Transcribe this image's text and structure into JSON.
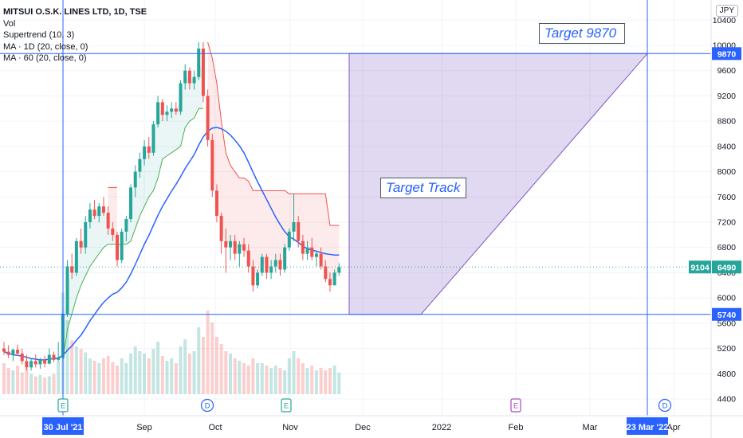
{
  "chart_data": {
    "type": "candlestick",
    "title": "MITSUI O.S.K. LINES LTD, 1D, TSE",
    "indicators": [
      "Vol",
      "Supertrend (10, 3)",
      "MA · 1D (20, close, 0)",
      "MA · 60 (20, close, 0)"
    ],
    "currency": "JPY",
    "y_ticks": [
      "10400",
      "10000",
      "9600",
      "9200",
      "8800",
      "8400",
      "8000",
      "7600",
      "7200",
      "6800",
      "6400",
      "6000",
      "5600",
      "5200",
      "4800",
      "4400"
    ],
    "ylim": [
      4200,
      10500
    ],
    "x_ticks": [
      "Sep",
      "Oct",
      "Nov",
      "Dec",
      "2022",
      "Feb",
      "Mar",
      "Apr"
    ],
    "x_highlight_start": "30 Jul '21",
    "x_highlight_end": "23 Mar '22",
    "target_level": 9870,
    "target_label": "9870",
    "stop_level": 5740,
    "stop_label": "5740",
    "last_price": "6490",
    "last_price_prefix": "9104",
    "annotations": {
      "target": "Target 9870",
      "track": "Target Track"
    },
    "event_markers": [
      {
        "date": "30 Jul '21",
        "letter": "E",
        "color": "#26a69a"
      },
      {
        "date": "Sep 28",
        "letter": "D",
        "color": "#2962ff"
      },
      {
        "date": "Oct 29",
        "letter": "E",
        "color": "#26a69a"
      },
      {
        "date": "Jan 31",
        "letter": "E",
        "color": "#ab47bc"
      },
      {
        "date": "Mar 30",
        "letter": "D",
        "color": "#2962ff"
      }
    ],
    "candles": [
      {
        "o": 5200,
        "h": 5300,
        "l": 5100,
        "c": 5150
      },
      {
        "o": 5150,
        "h": 5250,
        "l": 5050,
        "c": 5100
      },
      {
        "o": 5100,
        "h": 5200,
        "l": 5000,
        "c": 5180
      },
      {
        "o": 5180,
        "h": 5260,
        "l": 5080,
        "c": 5120
      },
      {
        "o": 5120,
        "h": 5200,
        "l": 4950,
        "c": 5000
      },
      {
        "o": 5000,
        "h": 5100,
        "l": 4850,
        "c": 4900
      },
      {
        "o": 4900,
        "h": 5050,
        "l": 4850,
        "c": 5000
      },
      {
        "o": 5000,
        "h": 5100,
        "l": 4900,
        "c": 4950
      },
      {
        "o": 4950,
        "h": 5050,
        "l": 4880,
        "c": 5020
      },
      {
        "o": 5020,
        "h": 5080,
        "l": 4900,
        "c": 4960
      },
      {
        "o": 4960,
        "h": 5200,
        "l": 4950,
        "c": 5100
      },
      {
        "o": 5100,
        "h": 5150,
        "l": 4980,
        "c": 5020
      },
      {
        "o": 5020,
        "h": 5300,
        "l": 5000,
        "c": 5050
      },
      {
        "o": 5050,
        "h": 5800,
        "l": 5050,
        "c": 5750
      },
      {
        "o": 5750,
        "h": 6600,
        "l": 5700,
        "c": 6500
      },
      {
        "o": 6500,
        "h": 6700,
        "l": 6300,
        "c": 6400
      },
      {
        "o": 6400,
        "h": 6950,
        "l": 6350,
        "c": 6900
      },
      {
        "o": 6900,
        "h": 7100,
        "l": 6700,
        "c": 6800
      },
      {
        "o": 6800,
        "h": 7300,
        "l": 6700,
        "c": 7200
      },
      {
        "o": 7200,
        "h": 7500,
        "l": 7100,
        "c": 7400
      },
      {
        "o": 7400,
        "h": 7550,
        "l": 7250,
        "c": 7300
      },
      {
        "o": 7300,
        "h": 7500,
        "l": 7200,
        "c": 7450
      },
      {
        "o": 7450,
        "h": 7600,
        "l": 7300,
        "c": 7350
      },
      {
        "o": 7350,
        "h": 7450,
        "l": 7000,
        "c": 7100
      },
      {
        "o": 7100,
        "h": 7200,
        "l": 6900,
        "c": 7000
      },
      {
        "o": 7000,
        "h": 7050,
        "l": 6500,
        "c": 6600
      },
      {
        "o": 6600,
        "h": 7100,
        "l": 6550,
        "c": 7050
      },
      {
        "o": 7050,
        "h": 7300,
        "l": 6900,
        "c": 7250
      },
      {
        "o": 7250,
        "h": 7800,
        "l": 7200,
        "c": 7750
      },
      {
        "o": 7750,
        "h": 8100,
        "l": 7600,
        "c": 8000
      },
      {
        "o": 8000,
        "h": 8300,
        "l": 7900,
        "c": 8200
      },
      {
        "o": 8200,
        "h": 8500,
        "l": 8100,
        "c": 8400
      },
      {
        "o": 8400,
        "h": 8550,
        "l": 8200,
        "c": 8300
      },
      {
        "o": 8300,
        "h": 8800,
        "l": 8250,
        "c": 8750
      },
      {
        "o": 8750,
        "h": 9200,
        "l": 8700,
        "c": 9100
      },
      {
        "o": 9100,
        "h": 9150,
        "l": 8800,
        "c": 8900
      },
      {
        "o": 8900,
        "h": 9050,
        "l": 8800,
        "c": 8950
      },
      {
        "o": 8950,
        "h": 9100,
        "l": 8850,
        "c": 9000
      },
      {
        "o": 9000,
        "h": 9100,
        "l": 8900,
        "c": 8950
      },
      {
        "o": 8950,
        "h": 9450,
        "l": 8900,
        "c": 9400
      },
      {
        "o": 9400,
        "h": 9700,
        "l": 9300,
        "c": 9600
      },
      {
        "o": 9600,
        "h": 9650,
        "l": 9300,
        "c": 9400
      },
      {
        "o": 9400,
        "h": 9600,
        "l": 9300,
        "c": 9500
      },
      {
        "o": 9500,
        "h": 10050,
        "l": 9450,
        "c": 9950
      },
      {
        "o": 9950,
        "h": 10050,
        "l": 9100,
        "c": 9200
      },
      {
        "o": 9200,
        "h": 9300,
        "l": 8400,
        "c": 8500
      },
      {
        "o": 8500,
        "h": 8600,
        "l": 7600,
        "c": 7700
      },
      {
        "o": 7700,
        "h": 7800,
        "l": 7200,
        "c": 7300
      },
      {
        "o": 7300,
        "h": 7350,
        "l": 6700,
        "c": 6900
      },
      {
        "o": 6900,
        "h": 7100,
        "l": 6400,
        "c": 6800
      },
      {
        "o": 6800,
        "h": 7000,
        "l": 6600,
        "c": 6900
      },
      {
        "o": 6900,
        "h": 7000,
        "l": 6600,
        "c": 6700
      },
      {
        "o": 6700,
        "h": 6900,
        "l": 6500,
        "c": 6850
      },
      {
        "o": 6850,
        "h": 6950,
        "l": 6650,
        "c": 6750
      },
      {
        "o": 6750,
        "h": 6850,
        "l": 6400,
        "c": 6500
      },
      {
        "o": 6500,
        "h": 6600,
        "l": 6100,
        "c": 6200
      },
      {
        "o": 6200,
        "h": 6450,
        "l": 6150,
        "c": 6400
      },
      {
        "o": 6400,
        "h": 6700,
        "l": 6350,
        "c": 6650
      },
      {
        "o": 6650,
        "h": 6700,
        "l": 6300,
        "c": 6400
      },
      {
        "o": 6400,
        "h": 6600,
        "l": 6300,
        "c": 6500
      },
      {
        "o": 6500,
        "h": 6700,
        "l": 6400,
        "c": 6600
      },
      {
        "o": 6600,
        "h": 6700,
        "l": 6350,
        "c": 6450
      },
      {
        "o": 6450,
        "h": 6850,
        "l": 6400,
        "c": 6800
      },
      {
        "o": 6800,
        "h": 7100,
        "l": 6750,
        "c": 7050
      },
      {
        "o": 7050,
        "h": 7650,
        "l": 6900,
        "c": 7200
      },
      {
        "o": 7200,
        "h": 7300,
        "l": 6800,
        "c": 6900
      },
      {
        "o": 6900,
        "h": 7000,
        "l": 6600,
        "c": 6700
      },
      {
        "o": 6700,
        "h": 6900,
        "l": 6600,
        "c": 6800
      },
      {
        "o": 6800,
        "h": 6950,
        "l": 6600,
        "c": 6650
      },
      {
        "o": 6650,
        "h": 6750,
        "l": 6500,
        "c": 6700
      },
      {
        "o": 6700,
        "h": 6800,
        "l": 6450,
        "c": 6500
      },
      {
        "o": 6500,
        "h": 6600,
        "l": 6250,
        "c": 6300
      },
      {
        "o": 6300,
        "h": 6400,
        "l": 6100,
        "c": 6200
      },
      {
        "o": 6200,
        "h": 6450,
        "l": 6200,
        "c": 6400
      },
      {
        "o": 6400,
        "h": 6550,
        "l": 6350,
        "c": 6490
      }
    ],
    "ma_20": [
      5150,
      5120,
      5100,
      5090,
      5080,
      5060,
      5040,
      5030,
      5020,
      5020,
      5030,
      5040,
      5050,
      5090,
      5170,
      5240,
      5330,
      5410,
      5520,
      5640,
      5740,
      5840,
      5930,
      6000,
      6060,
      6090,
      6160,
      6250,
      6380,
      6530,
      6690,
      6850,
      6990,
      7150,
      7310,
      7450,
      7570,
      7690,
      7800,
      7920,
      8050,
      8160,
      8270,
      8420,
      8550,
      8640,
      8690,
      8700,
      8680,
      8640,
      8580,
      8500,
      8410,
      8300,
      8150,
      7990,
      7840,
      7700,
      7560,
      7420,
      7280,
      7160,
      7050,
      6970,
      6930,
      6880,
      6820,
      6780,
      6760,
      6740,
      6720,
      6700,
      6690,
      6680,
      6680
    ],
    "supertrend_up": [
      null,
      null,
      null,
      null,
      null,
      null,
      null,
      null,
      null,
      null,
      null,
      null,
      null,
      5000,
      5500,
      5750,
      6000,
      6200,
      6350,
      6500,
      6600,
      6700,
      6800,
      6850,
      6850,
      6850,
      6850,
      6850,
      6900,
      7100,
      7300,
      7450,
      7600,
      7700,
      7900,
      8200,
      8250,
      8300,
      8350,
      8400,
      8700,
      8800,
      8850,
      9000,
      9000,
      null,
      null,
      null,
      null,
      null,
      null,
      null,
      null,
      null,
      null,
      null,
      null,
      null,
      null,
      null,
      null,
      null,
      null,
      null,
      null,
      null,
      null,
      null,
      null,
      null,
      null,
      null,
      null,
      null,
      null
    ],
    "supertrend_down": [
      null,
      null,
      null,
      null,
      null,
      null,
      null,
      null,
      null,
      null,
      null,
      null,
      null,
      null,
      null,
      null,
      null,
      null,
      null,
      null,
      null,
      null,
      null,
      7750,
      7750,
      7750,
      null,
      null,
      null,
      null,
      null,
      null,
      null,
      null,
      null,
      null,
      null,
      null,
      null,
      null,
      null,
      null,
      null,
      null,
      null,
      10050,
      9800,
      9400,
      8800,
      8300,
      8100,
      8000,
      7900,
      7900,
      7850,
      7700,
      7700,
      7700,
      7700,
      7700,
      7700,
      7700,
      7700,
      7650,
      7650,
      7650,
      7650,
      7650,
      7650,
      7650,
      7650,
      7650,
      7150,
      7150,
      7150
    ],
    "volume": [
      26,
      22,
      20,
      24,
      18,
      22,
      17,
      15,
      16,
      14,
      15,
      17,
      28,
      85,
      62,
      45,
      40,
      38,
      35,
      30,
      28,
      26,
      30,
      32,
      27,
      24,
      30,
      26,
      34,
      40,
      36,
      34,
      30,
      38,
      44,
      32,
      28,
      30,
      26,
      40,
      46,
      34,
      36,
      56,
      48,
      70,
      60,
      48,
      42,
      36,
      34,
      30,
      28,
      26,
      24,
      30,
      26,
      26,
      24,
      22,
      24,
      22,
      20,
      30,
      36,
      30,
      26,
      22,
      24,
      20,
      22,
      20,
      22,
      24,
      18
    ]
  }
}
